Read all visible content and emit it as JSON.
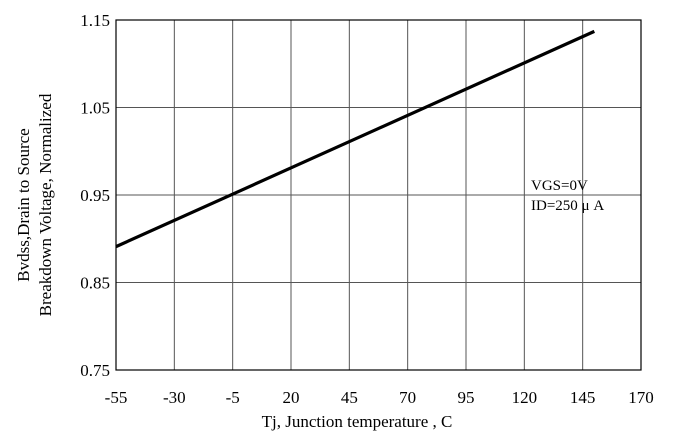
{
  "chart_data": {
    "type": "line",
    "title": "",
    "xlabel": "Tj, Junction temperature , C",
    "ylabel_lines": [
      "Bvdss,Drain to Source",
      "Breakdown Voltage, Normalized"
    ],
    "xlim": [
      -55,
      170
    ],
    "ylim": [
      0.75,
      1.15
    ],
    "x_ticks": [
      -55,
      -30,
      -5,
      20,
      45,
      70,
      95,
      120,
      145,
      170
    ],
    "y_ticks": [
      0.75,
      0.85,
      0.95,
      1.05,
      1.15
    ],
    "y_tick_labels": [
      "0.75",
      "0.85",
      "0.95",
      "1.05",
      "1.15"
    ],
    "grid": true,
    "series": [
      {
        "x": [
          -55,
          150
        ],
        "y": [
          0.891,
          1.137
        ]
      }
    ],
    "annotations": [
      "VGS=0V",
      "ID=250 μ A"
    ],
    "colors": {
      "line": "#000000",
      "grid": "#555555",
      "background": "#ffffff"
    }
  }
}
